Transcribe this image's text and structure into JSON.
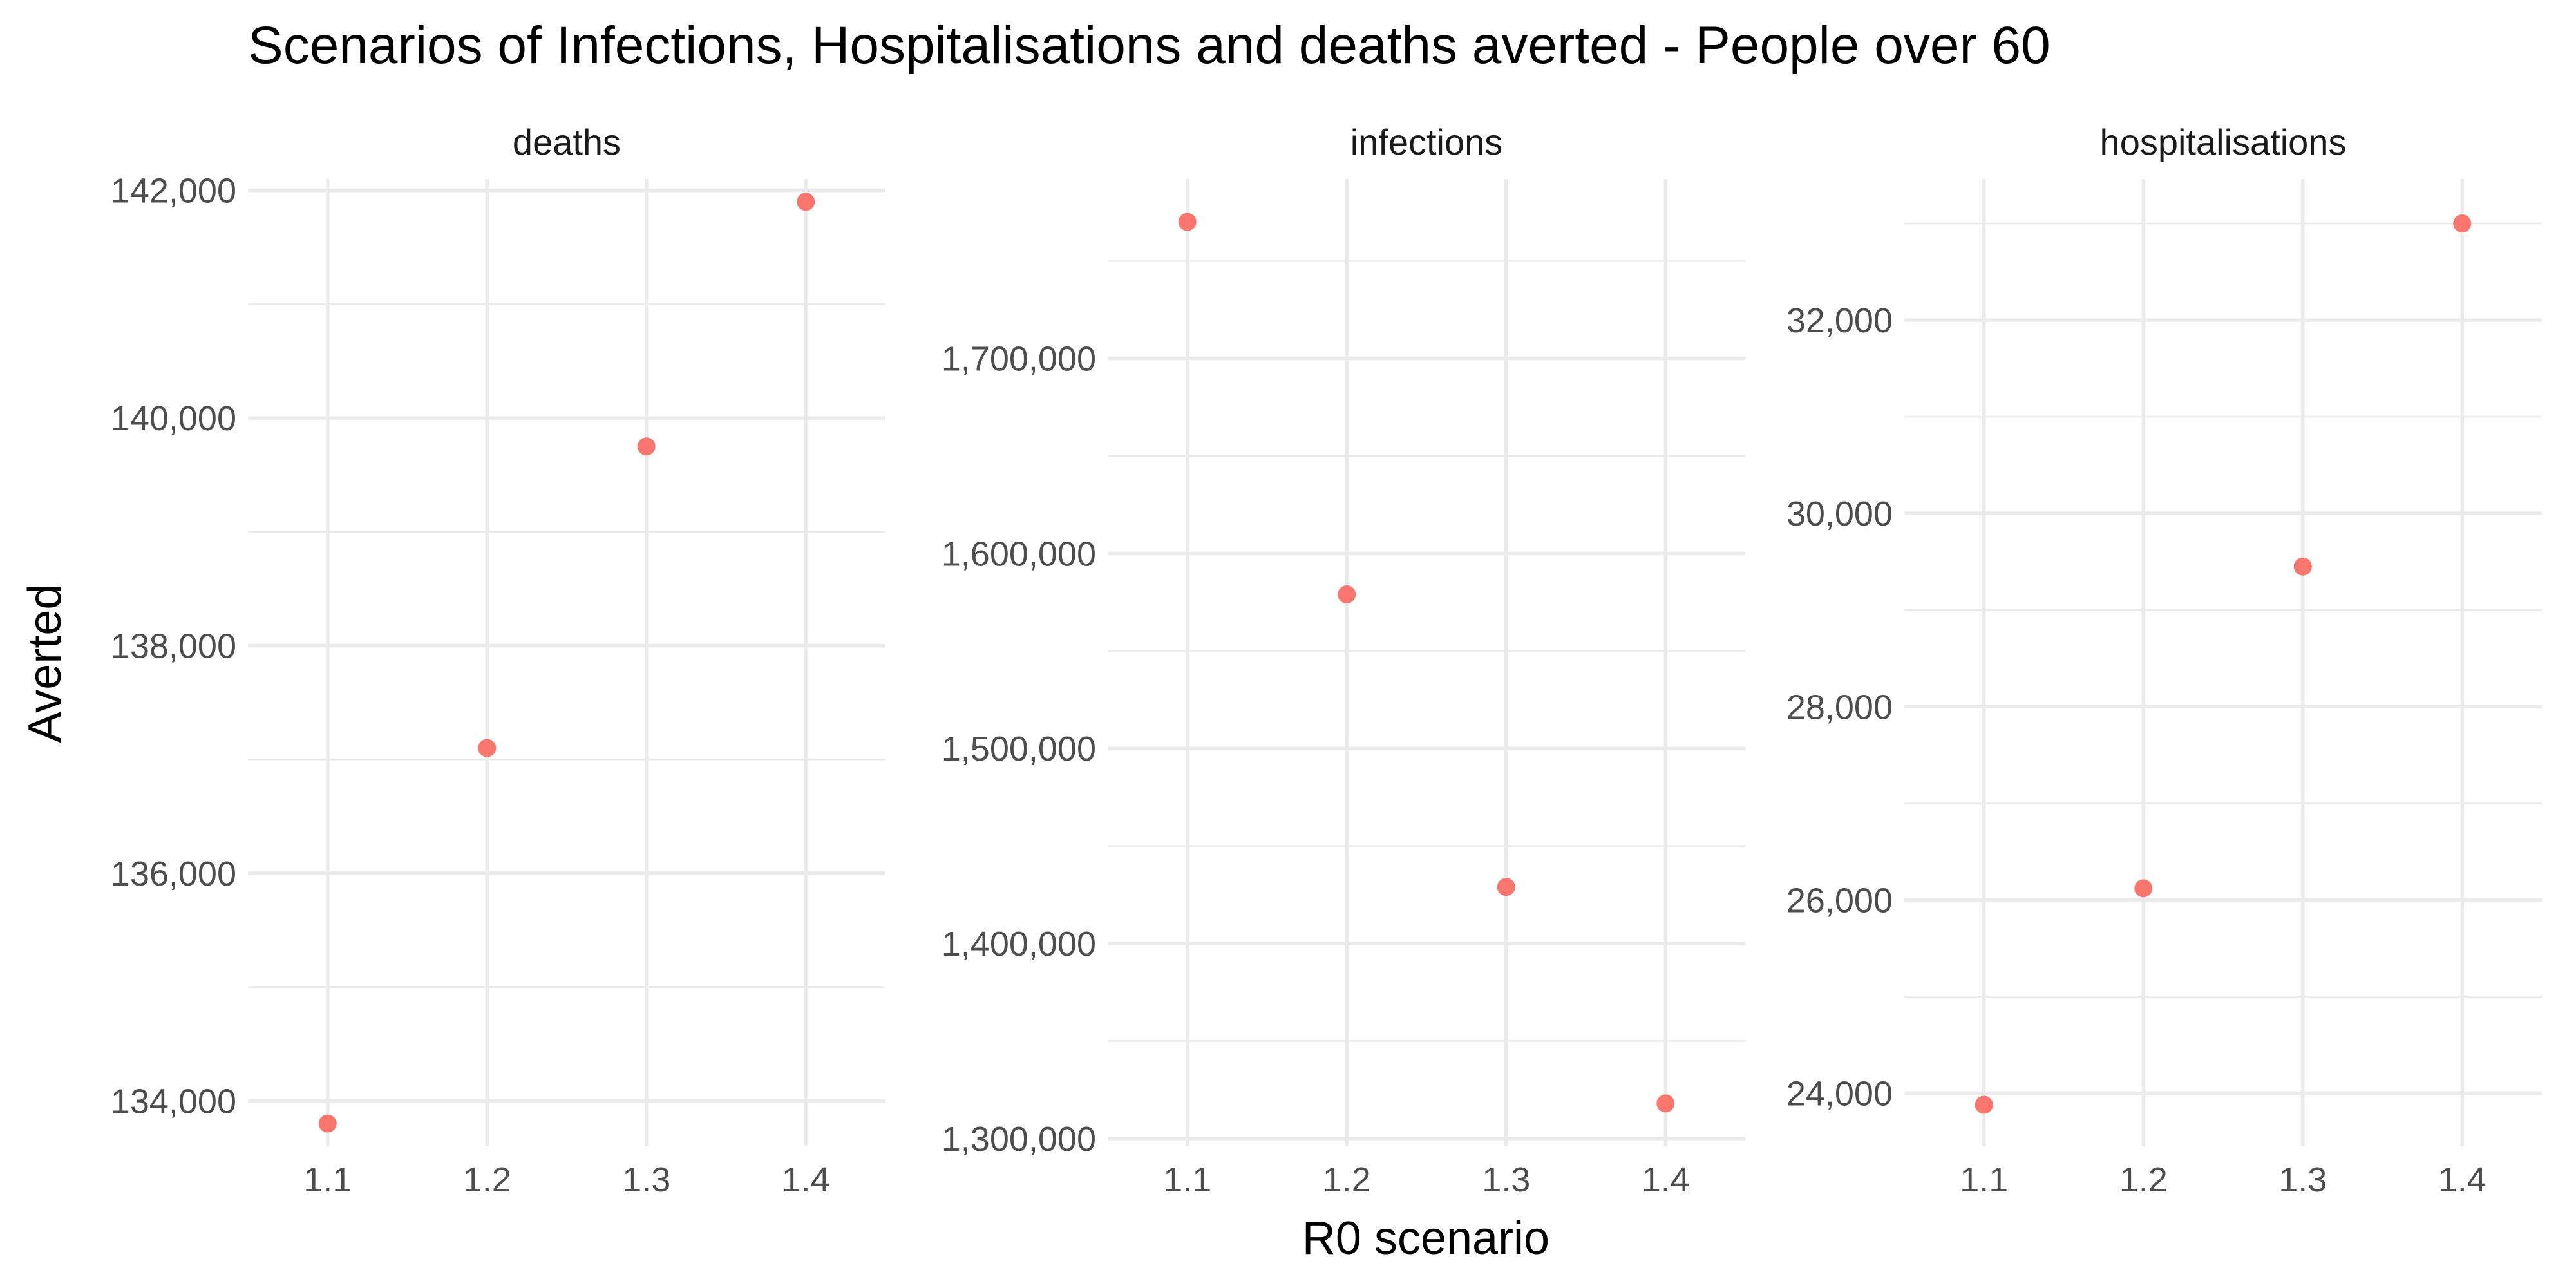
{
  "title": "Scenarios of Infections, Hospitalisations and deaths averted - People over 60",
  "xlabel": "R0 scenario",
  "ylabel": "Averted",
  "colors": {
    "point": "#F8766D",
    "grid": "#ebebeb"
  },
  "chart_data": [
    {
      "type": "scatter",
      "panel": "deaths",
      "x": [
        1.1,
        1.2,
        1.3,
        1.4
      ],
      "y": [
        133800,
        137100,
        139750,
        141900
      ],
      "x_ticks": [
        "1.1",
        "1.2",
        "1.3",
        "1.4"
      ],
      "y_ticks": [
        134000,
        136000,
        138000,
        140000,
        142000
      ],
      "y_tick_labels": [
        "134,000",
        "136,000",
        "138,000",
        "140,000",
        "142,000"
      ],
      "xlim": [
        1.05,
        1.45
      ],
      "ylim": [
        133600,
        142100
      ]
    },
    {
      "type": "scatter",
      "panel": "infections",
      "x": [
        1.1,
        1.2,
        1.3,
        1.4
      ],
      "y": [
        1770000,
        1579000,
        1429000,
        1318000
      ],
      "x_ticks": [
        "1.1",
        "1.2",
        "1.3",
        "1.4"
      ],
      "y_ticks": [
        1300000,
        1400000,
        1500000,
        1600000,
        1700000
      ],
      "y_tick_labels": [
        "1,300,000",
        "1,400,000",
        "1,500,000",
        "1,600,000",
        "1,700,000"
      ],
      "xlim": [
        1.05,
        1.45
      ],
      "ylim": [
        1296000,
        1792000
      ]
    },
    {
      "type": "scatter",
      "panel": "hospitalisations",
      "x": [
        1.1,
        1.2,
        1.3,
        1.4
      ],
      "y": [
        23880,
        26120,
        29450,
        33000
      ],
      "x_ticks": [
        "1.1",
        "1.2",
        "1.3",
        "1.4"
      ],
      "y_ticks": [
        24000,
        26000,
        28000,
        30000,
        32000
      ],
      "y_tick_labels": [
        "24,000",
        "26,000",
        "28,000",
        "30,000",
        "32,000"
      ],
      "xlim": [
        1.05,
        1.45
      ],
      "ylim": [
        23450,
        33460
      ]
    }
  ]
}
